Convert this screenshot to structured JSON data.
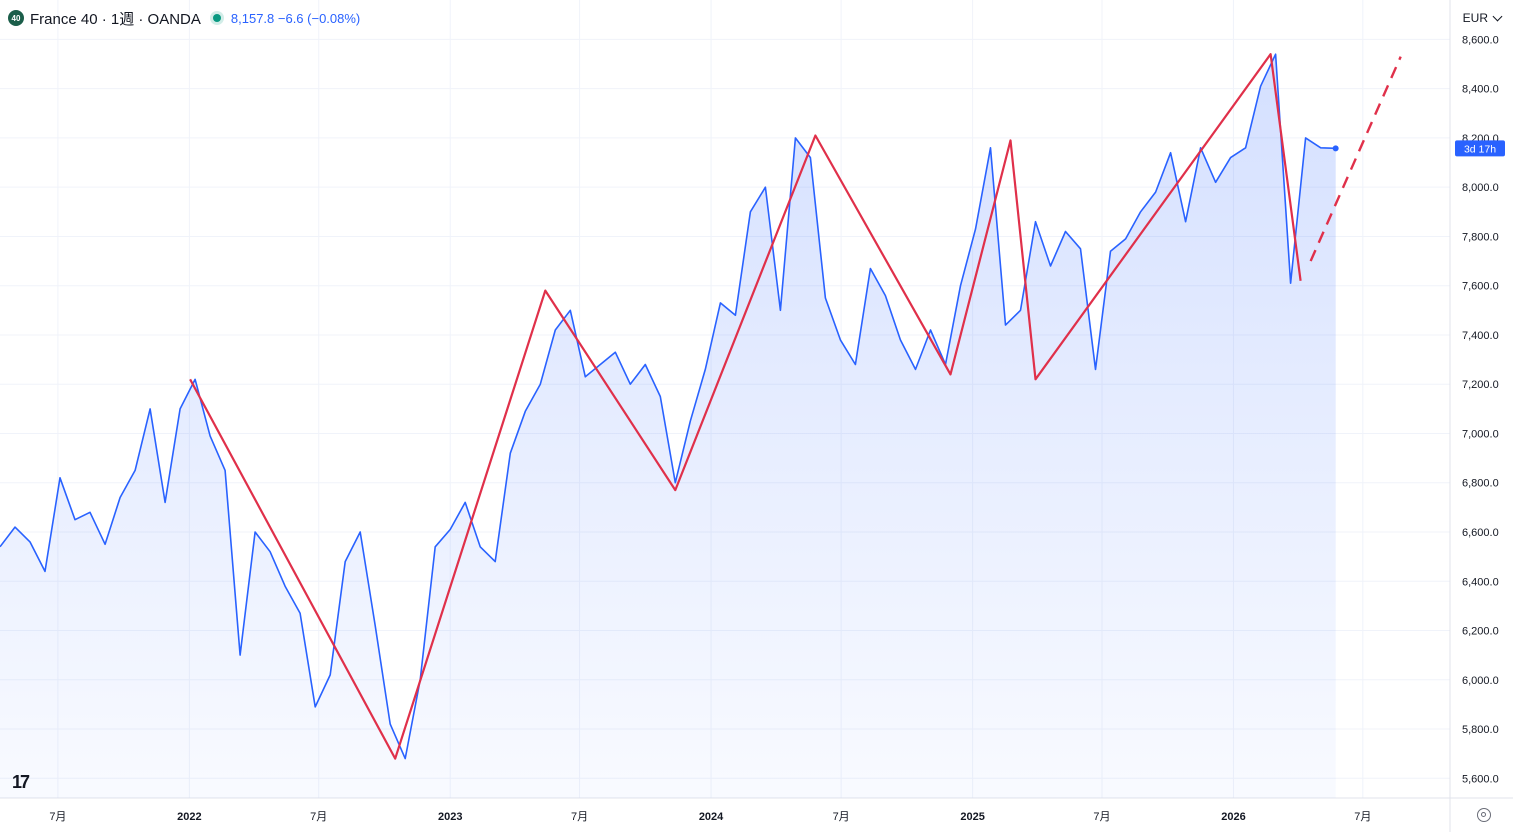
{
  "header": {
    "badge": "40",
    "symbol": "France 40 · 1週 · OANDA",
    "quote": "8,157.8  −6.6 (−0.08%)"
  },
  "currency": "EUR",
  "countdown": "3d 17h",
  "colors": {
    "line": "#2962ff",
    "fill": "#2962ff",
    "zigzag": "#e0304a",
    "grid": "#f0f3fa",
    "label_bg": "#2962ff"
  },
  "icons": [
    "tradingview-logo-icon",
    "settings-icon",
    "chevron-down-icon",
    "status-dot-icon"
  ],
  "chart_data": {
    "type": "area",
    "title": "France 40 · 1週 · OANDA",
    "y_ticks": [
      "5,600.0",
      "5,800.0",
      "6,000.0",
      "6,200.0",
      "6,400.0",
      "6,600.0",
      "6,800.0",
      "7,000.0",
      "7,200.0",
      "7,400.0",
      "7,600.0",
      "7,800.0",
      "8,000.0",
      "8,200.0",
      "8,400.0",
      "8,600.0"
    ],
    "x_ticks": [
      {
        "label": "7月",
        "date": "2021-07-01"
      },
      {
        "label": "2022",
        "date": "2022-01-01"
      },
      {
        "label": "7月",
        "date": "2022-07-01"
      },
      {
        "label": "2023",
        "date": "2023-01-01"
      },
      {
        "label": "7月",
        "date": "2023-07-01"
      },
      {
        "label": "2024",
        "date": "2024-01-01"
      },
      {
        "label": "7月",
        "date": "2024-07-01"
      },
      {
        "label": "2025",
        "date": "2025-01-01"
      },
      {
        "label": "7月",
        "date": "2025-07-01"
      },
      {
        "label": "2026",
        "date": "2026-01-01"
      },
      {
        "label": "7月",
        "date": "2026-07-01"
      }
    ],
    "ylim": [
      5520,
      8760
    ],
    "xlim": [
      "2021-04-11",
      "2026-10-31"
    ],
    "series": [
      {
        "x": [
          "2021-04-11",
          "2021-05-02",
          "2021-05-23",
          "2021-06-13",
          "2021-07-04",
          "2021-07-25",
          "2021-08-15",
          "2021-09-05",
          "2021-09-26",
          "2021-10-17",
          "2021-11-07",
          "2021-11-28",
          "2021-12-19",
          "2022-01-09",
          "2022-01-30",
          "2022-02-20",
          "2022-03-13",
          "2022-04-03",
          "2022-04-24",
          "2022-05-15",
          "2022-06-05",
          "2022-06-26",
          "2022-07-17",
          "2022-08-07",
          "2022-08-28",
          "2022-09-18",
          "2022-10-09",
          "2022-10-30",
          "2022-11-20",
          "2022-12-11",
          "2023-01-01",
          "2023-01-22",
          "2023-02-12",
          "2023-03-05",
          "2023-03-26",
          "2023-04-16",
          "2023-05-07",
          "2023-05-28",
          "2023-06-18",
          "2023-07-09",
          "2023-07-30",
          "2023-08-20",
          "2023-09-10",
          "2023-10-01",
          "2023-10-22",
          "2023-11-12",
          "2023-12-03",
          "2023-12-24",
          "2024-01-14",
          "2024-02-04",
          "2024-02-25",
          "2024-03-17",
          "2024-04-07",
          "2024-04-28",
          "2024-05-19",
          "2024-06-09",
          "2024-06-30",
          "2024-07-21",
          "2024-08-11",
          "2024-09-01",
          "2024-09-22",
          "2024-10-13",
          "2024-11-03",
          "2024-11-24",
          "2024-12-15",
          "2025-01-05",
          "2025-01-26",
          "2025-02-16",
          "2025-03-09",
          "2025-03-30",
          "2025-04-20",
          "2025-05-11",
          "2025-06-01",
          "2025-06-22",
          "2025-07-13",
          "2025-08-03",
          "2025-08-24",
          "2025-09-14",
          "2025-10-05",
          "2025-10-26",
          "2025-11-16",
          "2025-12-07",
          "2025-12-28",
          "2026-01-18",
          "2026-02-08",
          "2026-03-01",
          "2026-03-22",
          "2026-04-12",
          "2026-05-03",
          "2026-05-24"
        ],
        "values": [
          6540,
          6620,
          6560,
          6440,
          6820,
          6650,
          6680,
          6550,
          6740,
          6850,
          7100,
          6720,
          7100,
          7220,
          6990,
          6850,
          6100,
          6600,
          6520,
          6380,
          6270,
          5890,
          6020,
          6480,
          6600,
          6220,
          5820,
          5680,
          6000,
          6540,
          6610,
          6720,
          6540,
          6480,
          6920,
          7090,
          7200,
          7420,
          7500,
          7230,
          7280,
          7330,
          7200,
          7280,
          7150,
          6800,
          7050,
          7260,
          7530,
          7480,
          7900,
          8000,
          7500,
          8200,
          8120,
          7550,
          7380,
          7280,
          7670,
          7560,
          7380,
          7260,
          7420,
          7280,
          7600,
          7830,
          8160,
          7440,
          7500,
          7860,
          7680,
          7820,
          7750,
          7260,
          7740,
          7790,
          7900,
          7980,
          8140,
          7860,
          8160,
          8020,
          8120,
          8160,
          8410,
          8540,
          7610,
          8200,
          8160,
          8157.8
        ]
      }
    ],
    "zigzag": {
      "x": [
        "2022-01-02",
        "2022-10-16",
        "2023-05-14",
        "2023-11-12",
        "2024-05-26",
        "2024-12-01",
        "2025-02-23",
        "2025-03-30",
        "2026-02-22",
        "2026-04-05"
      ],
      "values": [
        7220,
        5680,
        7580,
        6770,
        8210,
        7240,
        8190,
        7220,
        8540,
        7620
      ]
    },
    "projection": {
      "x": [
        "2026-04-19",
        "2026-08-23"
      ],
      "values": [
        7700,
        8530
      ]
    }
  }
}
